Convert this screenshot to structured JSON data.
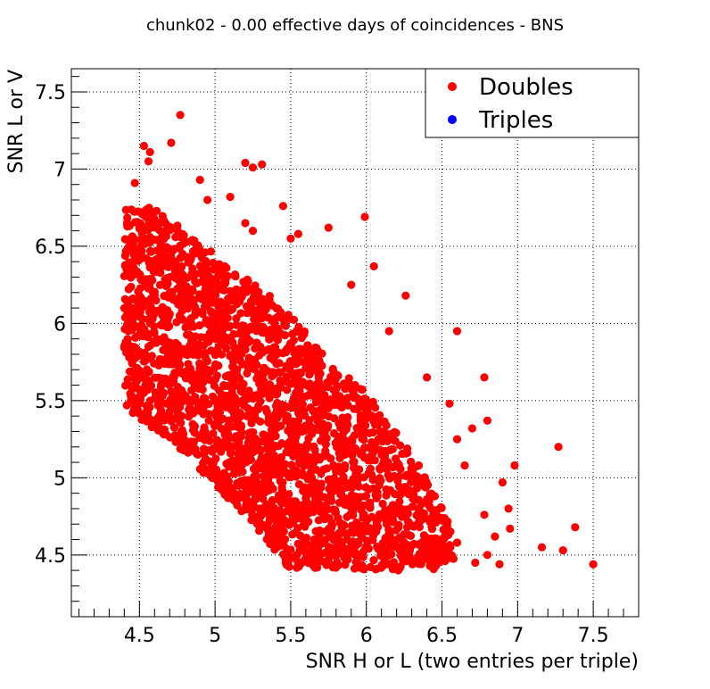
{
  "chart_data": {
    "type": "scatter",
    "title": "chunk02 - 0.00 effective days of coincidences - BNS",
    "xlabel": "SNR H or L (two entries per triple)",
    "ylabel": "SNR L or V",
    "xlim": [
      4.05,
      7.8
    ],
    "ylim": [
      4.1,
      7.65
    ],
    "xticks": [
      "4.5",
      "5",
      "5.5",
      "6",
      "6.5",
      "7",
      "7.5"
    ],
    "yticks": [
      "4.5",
      "5",
      "5.5",
      "6",
      "6.5",
      "7",
      "7.5"
    ],
    "grid": true,
    "legend_position": "top-right",
    "series": [
      {
        "name": "Doubles",
        "color": "#ff0000",
        "bulk_region": {
          "x_min": 4.4,
          "y_min": 4.4,
          "lower_left_boundary": [
            [
              4.4,
              5.45
            ],
            [
              4.75,
              5.2
            ],
            [
              5.0,
              4.95
            ],
            [
              5.25,
              4.7
            ],
            [
              5.45,
              4.45
            ],
            [
              5.5,
              4.4
            ]
          ],
          "upper_right_boundary": [
            [
              4.4,
              6.75
            ],
            [
              4.6,
              6.75
            ],
            [
              4.8,
              6.6
            ],
            [
              5.0,
              6.45
            ],
            [
              5.2,
              6.3
            ],
            [
              5.4,
              6.15
            ],
            [
              5.6,
              5.95
            ],
            [
              5.8,
              5.75
            ],
            [
              6.0,
              5.55
            ],
            [
              6.2,
              5.3
            ],
            [
              6.4,
              5.0
            ],
            [
              6.55,
              4.7
            ],
            [
              6.6,
              4.4
            ]
          ]
        },
        "outliers": [
          [
            4.47,
            6.91
          ],
          [
            4.53,
            7.15
          ],
          [
            4.56,
            7.05
          ],
          [
            4.57,
            7.11
          ],
          [
            4.71,
            7.17
          ],
          [
            4.77,
            7.35
          ],
          [
            4.9,
            6.93
          ],
          [
            4.95,
            6.8
          ],
          [
            5.1,
            6.82
          ],
          [
            5.2,
            7.04
          ],
          [
            5.25,
            7.01
          ],
          [
            5.31,
            7.03
          ],
          [
            5.2,
            6.65
          ],
          [
            5.25,
            6.6
          ],
          [
            5.45,
            6.76
          ],
          [
            5.5,
            6.55
          ],
          [
            5.55,
            6.58
          ],
          [
            5.75,
            6.62
          ],
          [
            5.99,
            6.69
          ],
          [
            6.05,
            6.37
          ],
          [
            5.9,
            6.25
          ],
          [
            6.26,
            6.18
          ],
          [
            6.15,
            5.95
          ],
          [
            6.6,
            5.95
          ],
          [
            6.4,
            5.65
          ],
          [
            6.78,
            5.65
          ],
          [
            6.55,
            5.48
          ],
          [
            6.8,
            5.37
          ],
          [
            6.7,
            5.32
          ],
          [
            6.6,
            5.25
          ],
          [
            6.65,
            5.08
          ],
          [
            6.9,
            4.97
          ],
          [
            6.94,
            4.8
          ],
          [
            6.98,
            5.08
          ],
          [
            6.78,
            4.76
          ],
          [
            6.85,
            4.62
          ],
          [
            6.95,
            4.67
          ],
          [
            6.88,
            4.44
          ],
          [
            7.16,
            4.55
          ],
          [
            7.27,
            5.2
          ],
          [
            7.3,
            4.53
          ],
          [
            7.38,
            4.68
          ],
          [
            7.5,
            4.44
          ],
          [
            6.72,
            4.45
          ],
          [
            6.6,
            4.58
          ],
          [
            6.55,
            4.48
          ],
          [
            6.8,
            4.5
          ]
        ]
      },
      {
        "name": "Triples",
        "color": "#0000ff",
        "points": []
      }
    ]
  }
}
